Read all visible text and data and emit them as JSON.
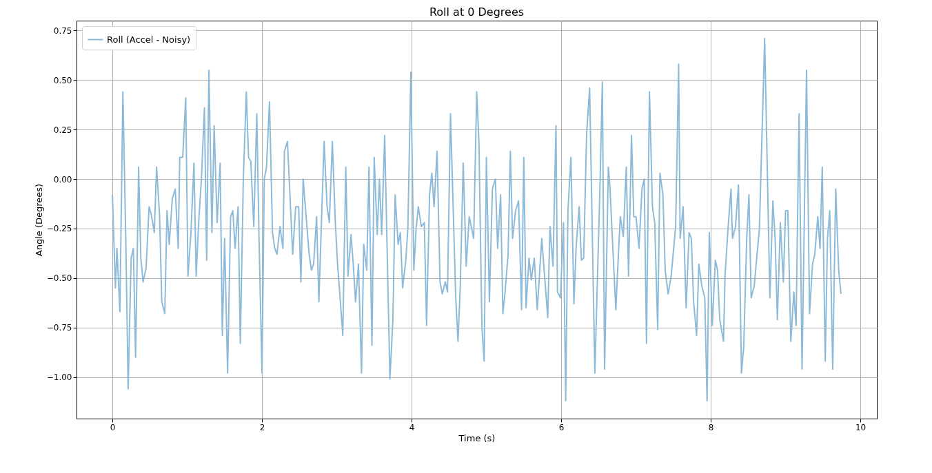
{
  "chart_data": {
    "type": "line",
    "title": "Roll at 0 Degrees",
    "xlabel": "Time (s)",
    "ylabel": "Angle (Degrees)",
    "xlim": [
      -0.48,
      10.22
    ],
    "ylim": [
      -1.21,
      0.8
    ],
    "xticks": [
      0,
      2,
      4,
      6,
      8,
      10
    ],
    "yticks": [
      {
        "value": -1,
        "label": "−1.00"
      },
      {
        "value": -0.75,
        "label": "−0.75"
      },
      {
        "value": -0.5,
        "label": "−0.50"
      },
      {
        "value": -0.25,
        "label": "−0.25"
      },
      {
        "value": 0,
        "label": "0.00"
      },
      {
        "value": 0.25,
        "label": "0.25"
      },
      {
        "value": 0.5,
        "label": "0.50"
      },
      {
        "value": 0.75,
        "label": "0.75"
      }
    ],
    "grid": true,
    "legend": "top left",
    "series": [
      {
        "name": "Roll (Accel - Noisy)",
        "color": "#8ebad9",
        "x": [
          0.0,
          0.04,
          0.06,
          0.1,
          0.14,
          0.18,
          0.21,
          0.25,
          0.28,
          0.31,
          0.35,
          0.38,
          0.41,
          0.45,
          0.49,
          0.52,
          0.56,
          0.59,
          0.63,
          0.66,
          0.7,
          0.73,
          0.76,
          0.8,
          0.84,
          0.88,
          0.9,
          0.94,
          0.98,
          1.01,
          1.05,
          1.09,
          1.12,
          1.15,
          1.19,
          1.23,
          1.26,
          1.29,
          1.33,
          1.36,
          1.4,
          1.44,
          1.47,
          1.5,
          1.54,
          1.58,
          1.61,
          1.64,
          1.68,
          1.71,
          1.75,
          1.79,
          1.82,
          1.85,
          1.89,
          1.93,
          1.96,
          2.0,
          2.03,
          2.06,
          2.1,
          2.14,
          2.17,
          2.2,
          2.24,
          2.28,
          2.3,
          2.34,
          2.41,
          2.45,
          2.49,
          2.52,
          2.55,
          2.63,
          2.66,
          2.69,
          2.73,
          2.76,
          2.83,
          2.87,
          2.9,
          2.94,
          2.98,
          3.01,
          3.04,
          3.08,
          3.12,
          3.15,
          3.19,
          3.22,
          3.25,
          3.29,
          3.33,
          3.36,
          3.4,
          3.43,
          3.47,
          3.5,
          3.54,
          3.57,
          3.6,
          3.64,
          3.71,
          3.75,
          3.78,
          3.82,
          3.85,
          3.88,
          3.92,
          3.95,
          3.99,
          4.03,
          4.06,
          4.09,
          4.13,
          4.17,
          4.2,
          4.24,
          4.27,
          4.3,
          4.34,
          4.38,
          4.41,
          4.45,
          4.48,
          4.52,
          4.59,
          4.62,
          4.65,
          4.69,
          4.73,
          4.77,
          4.83,
          4.87,
          4.9,
          4.94,
          4.97,
          5.0,
          5.04,
          5.08,
          5.12,
          5.15,
          5.19,
          5.22,
          5.25,
          5.29,
          5.32,
          5.35,
          5.39,
          5.43,
          5.47,
          5.5,
          5.53,
          5.57,
          5.6,
          5.64,
          5.68,
          5.74,
          5.82,
          5.85,
          5.89,
          5.93,
          5.95,
          5.99,
          6.03,
          6.06,
          6.09,
          6.13,
          6.17,
          6.2,
          6.24,
          6.27,
          6.3,
          6.34,
          6.38,
          6.45,
          6.52,
          6.55,
          6.58,
          6.63,
          6.65,
          6.73,
          6.77,
          6.79,
          6.83,
          6.87,
          6.9,
          6.94,
          6.97,
          7.0,
          7.04,
          7.08,
          7.11,
          7.14,
          7.18,
          7.22,
          7.25,
          7.29,
          7.32,
          7.36,
          7.39,
          7.43,
          7.47,
          7.53,
          7.57,
          7.59,
          7.63,
          7.67,
          7.71,
          7.74,
          7.77,
          7.81,
          7.84,
          7.88,
          7.92,
          7.95,
          7.98,
          8.02,
          8.06,
          8.09,
          8.12,
          8.17,
          8.19,
          8.23,
          8.27,
          8.29,
          8.33,
          8.37,
          8.41,
          8.44,
          8.48,
          8.51,
          8.54,
          8.58,
          8.65,
          8.72,
          8.79,
          8.83,
          8.86,
          8.89,
          8.93,
          8.97,
          9.0,
          9.03,
          9.07,
          9.11,
          9.14,
          9.18,
          9.22,
          9.28,
          9.32,
          9.36,
          9.39,
          9.43,
          9.46,
          9.49,
          9.53,
          9.56,
          9.59,
          9.63,
          9.67,
          9.71,
          9.74
        ],
        "values": [
          -0.08,
          -0.55,
          -0.35,
          -0.67,
          0.44,
          -0.33,
          -1.06,
          -0.4,
          -0.35,
          -0.9,
          0.06,
          -0.4,
          -0.52,
          -0.45,
          -0.14,
          -0.18,
          -0.27,
          0.06,
          -0.18,
          -0.62,
          -0.68,
          -0.16,
          -0.33,
          -0.1,
          -0.05,
          -0.35,
          0.11,
          0.11,
          0.41,
          -0.49,
          -0.27,
          0.08,
          -0.49,
          -0.24,
          0.0,
          0.36,
          -0.41,
          0.55,
          -0.27,
          0.27,
          -0.22,
          0.08,
          -0.79,
          -0.3,
          -0.98,
          -0.19,
          -0.16,
          -0.35,
          -0.14,
          -0.83,
          0.0,
          0.44,
          0.11,
          0.09,
          -0.24,
          0.33,
          -0.3,
          -0.98,
          0.0,
          0.06,
          0.39,
          -0.27,
          -0.35,
          -0.38,
          -0.24,
          -0.35,
          0.14,
          0.19,
          -0.38,
          -0.14,
          -0.14,
          -0.52,
          0.0,
          -0.38,
          -0.46,
          -0.43,
          -0.19,
          -0.62,
          0.19,
          -0.14,
          -0.22,
          0.19,
          -0.22,
          -0.43,
          -0.58,
          -0.79,
          0.06,
          -0.49,
          -0.28,
          -0.43,
          -0.62,
          -0.43,
          -0.98,
          -0.33,
          -0.46,
          0.06,
          -0.84,
          0.11,
          -0.28,
          0.0,
          -0.28,
          0.22,
          -1.01,
          -0.71,
          -0.08,
          -0.33,
          -0.27,
          -0.55,
          -0.42,
          -0.25,
          0.54,
          -0.46,
          -0.25,
          -0.14,
          -0.24,
          -0.22,
          -0.74,
          -0.08,
          0.03,
          -0.14,
          0.14,
          -0.52,
          -0.58,
          -0.52,
          -0.57,
          0.33,
          -0.6,
          -0.82,
          -0.55,
          0.08,
          -0.44,
          -0.19,
          -0.3,
          0.44,
          0.19,
          -0.75,
          -0.92,
          0.11,
          -0.62,
          -0.05,
          0.0,
          -0.35,
          -0.08,
          -0.68,
          -0.57,
          -0.38,
          0.14,
          -0.3,
          -0.16,
          -0.11,
          -0.66,
          0.11,
          -0.65,
          -0.4,
          -0.51,
          -0.4,
          -0.66,
          -0.3,
          -0.7,
          -0.24,
          -0.44,
          0.27,
          -0.57,
          -0.6,
          -0.22,
          -1.12,
          -0.16,
          0.11,
          -0.63,
          -0.34,
          -0.14,
          -0.41,
          -0.4,
          0.23,
          0.46,
          -0.98,
          -0.01,
          0.49,
          -0.96,
          0.06,
          -0.03,
          -0.66,
          -0.34,
          -0.19,
          -0.29,
          0.06,
          -0.49,
          0.22,
          -0.19,
          -0.19,
          -0.35,
          -0.05,
          0.0,
          -0.83,
          0.44,
          -0.14,
          -0.22,
          -0.76,
          0.03,
          -0.08,
          -0.46,
          -0.58,
          -0.49,
          -0.24,
          0.58,
          -0.3,
          -0.14,
          -0.65,
          -0.27,
          -0.3,
          -0.62,
          -0.79,
          -0.43,
          -0.54,
          -0.6,
          -1.12,
          -0.27,
          -0.74,
          -0.41,
          -0.46,
          -0.71,
          -0.82,
          -0.49,
          -0.25,
          -0.05,
          -0.3,
          -0.24,
          -0.03,
          -0.98,
          -0.85,
          -0.3,
          -0.08,
          -0.6,
          -0.54,
          -0.25,
          0.71,
          -0.6,
          -0.11,
          -0.3,
          -0.71,
          -0.22,
          -0.52,
          -0.16,
          -0.16,
          -0.82,
          -0.57,
          -0.74,
          0.33,
          -0.96,
          0.55,
          -0.68,
          -0.43,
          -0.38,
          -0.19,
          -0.35,
          0.06,
          -0.92,
          -0.3,
          -0.16,
          -0.96,
          -0.05,
          -0.46,
          -0.58
        ]
      }
    ]
  }
}
